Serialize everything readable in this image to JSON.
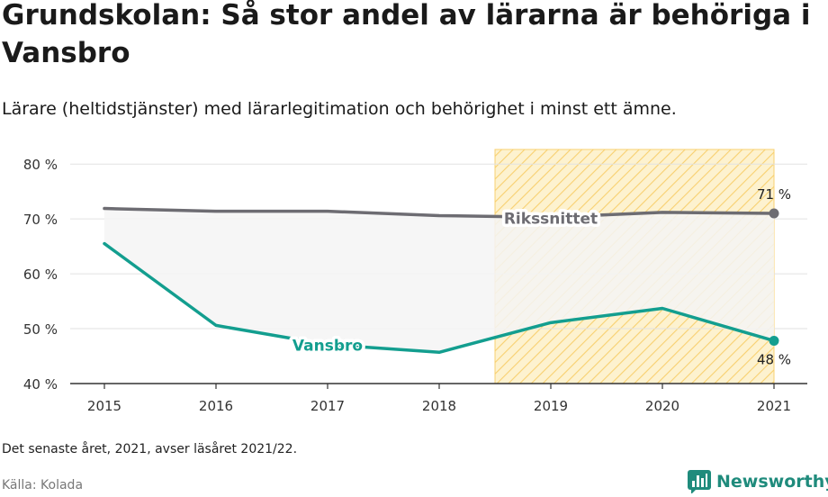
{
  "header": {
    "title": "Grundskolan: Så stor andel av lärarna är behöriga i Vansbro",
    "subtitle": "Lärare (heltidstjänster) med lärarlegitimation och behörighet i minst ett ämne."
  },
  "footer": {
    "note": "Det senaste året, 2021, avser läsåret 2021/22.",
    "source": "Källa: Kolada",
    "brand": "Newsworthy",
    "brand_icon": "bar-chart-logo-icon"
  },
  "colors": {
    "rikssnittet": "#6d6c72",
    "vansbro": "#139e8f",
    "highlight_fill": "#fdf2cf",
    "highlight_stroke": "#f8d070",
    "band": "#f4f4f4",
    "grid": "#e2e2e2",
    "brand": "#1f8b7c"
  },
  "chart_data": {
    "type": "line",
    "title": "Grundskolan: Så stor andel av lärarna är behöriga i Vansbro",
    "subtitle": "Lärare (heltidstjänster) med lärarlegitimation och behörighet i minst ett ämne.",
    "x": [
      2015,
      2016,
      2017,
      2018,
      2019,
      2020,
      2021
    ],
    "x_tick_labels": [
      "2015",
      "2016",
      "2017",
      "2018",
      "2019",
      "2020",
      "2021"
    ],
    "ylim": [
      40,
      82
    ],
    "y_ticks": [
      40,
      50,
      60,
      70,
      80
    ],
    "y_tick_labels": [
      "40 %",
      "50 %",
      "60 %",
      "70 %",
      "80 %"
    ],
    "grid": true,
    "highlight_range": [
      2018.5,
      2021
    ],
    "series": [
      {
        "name": "Rikssnittet",
        "label": "Rikssnittet",
        "values": [
          71.9,
          71.4,
          71.4,
          70.6,
          70.3,
          71.2,
          71.0
        ],
        "end_label": "71 %",
        "label_x": 2019
      },
      {
        "name": "Vansbro",
        "label": "Vansbro",
        "values": [
          65.5,
          50.6,
          47.1,
          45.7,
          51.1,
          53.7,
          47.8
        ],
        "end_label": "48 %",
        "label_x": 2017
      }
    ]
  }
}
